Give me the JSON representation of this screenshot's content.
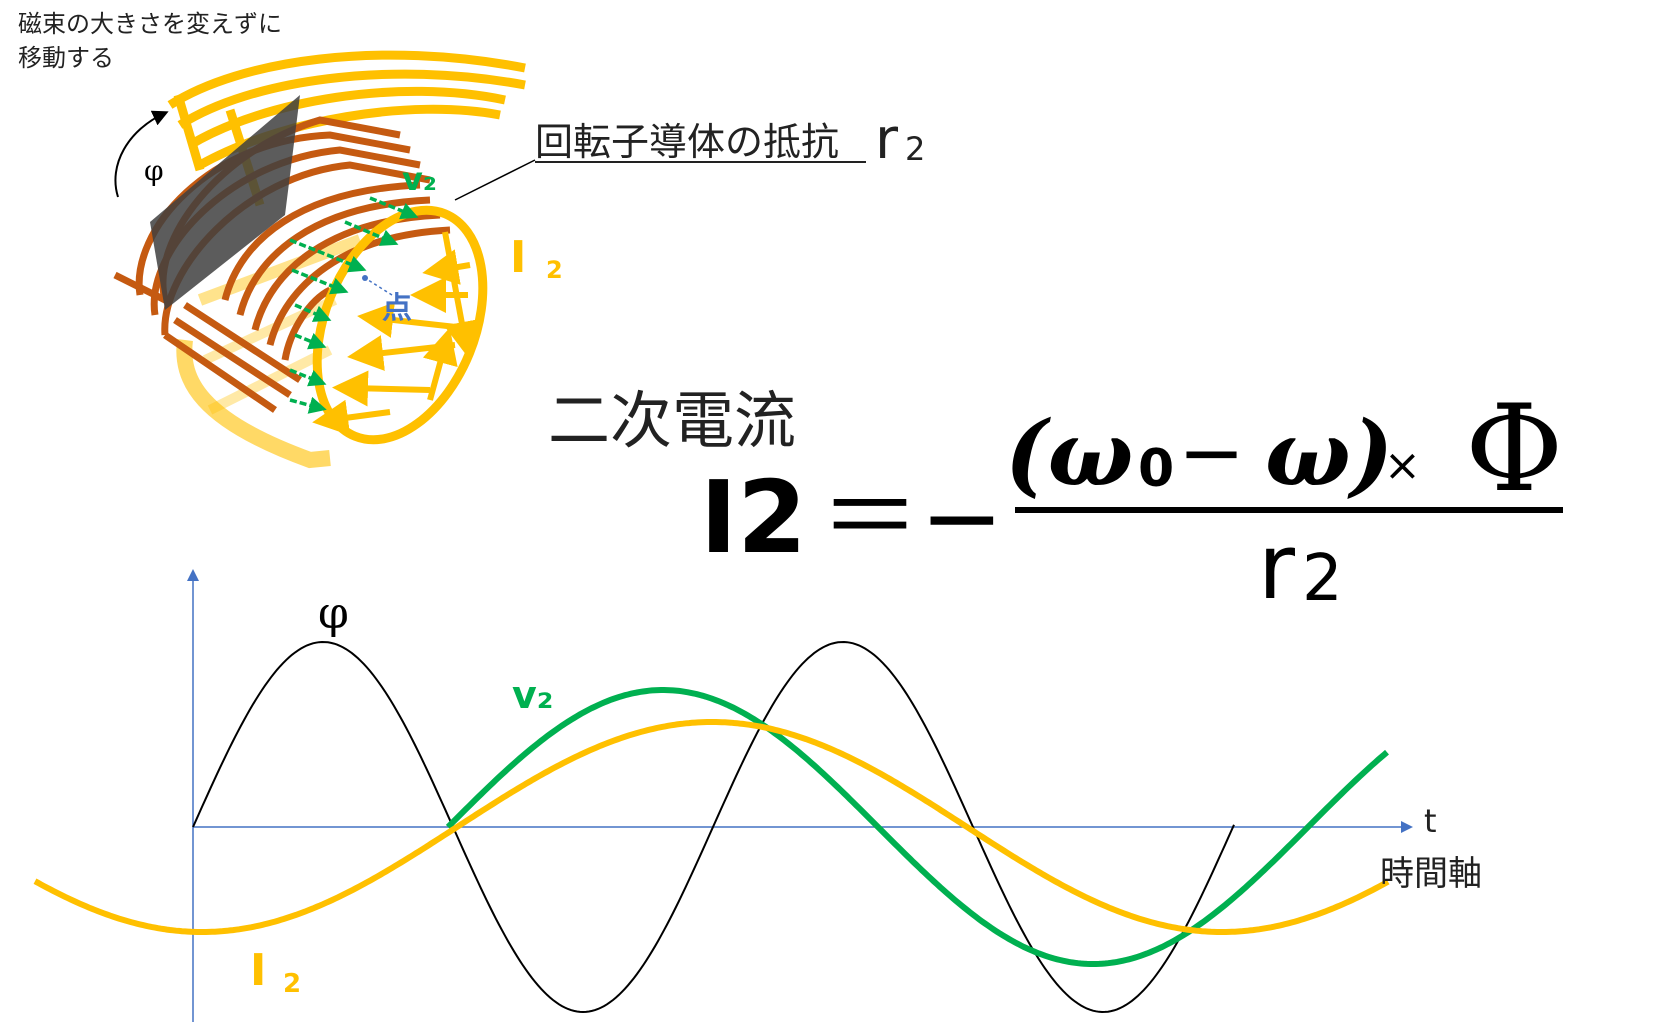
{
  "caption_top": [
    "磁束の大きさを変えずに",
    "移動する"
  ],
  "phi_label_top": "φ",
  "rotor_resistance_label": "回転子導体の抵抗",
  "r2_label": "r",
  "r2_subscript": "2",
  "v2_label_top": "v₂",
  "i2_label_top_main": "I",
  "i2_label_top_sub": "2",
  "point_label": "点",
  "formula": {
    "heading": "二次電流",
    "lhs": "I2",
    "equals": "＝−",
    "numerator_left": "(ω",
    "numerator_sub0": "0",
    "numerator_minus": "−",
    "numerator_omega": "ω)",
    "numerator_times": "×",
    "numerator_phi": "Φ",
    "denominator_r": "r",
    "denominator_sub": "2"
  },
  "graph": {
    "phi_label": "φ",
    "v2_label": "v₂",
    "i2_label_main": "I",
    "i2_label_sub": "2",
    "t_label": "t",
    "time_axis_label": "時間軸"
  },
  "colors": {
    "yellow": "#FFC000",
    "green": "#00B050",
    "brown": "#C55A11",
    "axis_blue": "#4472C4",
    "point_blue": "#4472C4",
    "black": "#000000",
    "gray_plate": "#404040"
  }
}
